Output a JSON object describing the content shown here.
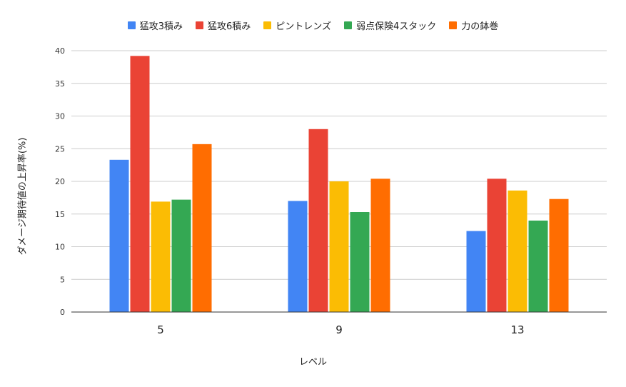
{
  "chart_data": {
    "type": "bar",
    "categories": [
      "5",
      "9",
      "13"
    ],
    "series": [
      {
        "name": "猛攻3積み",
        "color": "#4285F4",
        "values": [
          23.3,
          17.0,
          12.4
        ]
      },
      {
        "name": "猛攻6積み",
        "color": "#EA4335",
        "values": [
          39.2,
          28.0,
          20.4
        ]
      },
      {
        "name": "ピントレンズ",
        "color": "#FBBC04",
        "values": [
          16.9,
          20.0,
          18.6
        ]
      },
      {
        "name": "弱点保険4スタック",
        "color": "#34A853",
        "values": [
          17.2,
          15.3,
          14.0
        ]
      },
      {
        "name": "力の鉢巻",
        "color": "#FF6D01",
        "values": [
          25.7,
          20.4,
          17.3
        ]
      }
    ],
    "ylim": [
      0,
      40
    ],
    "yticks": [
      0,
      5,
      10,
      15,
      20,
      25,
      30,
      35,
      40
    ],
    "xlabel": "レベル",
    "ylabel": "ダメージ期待値の上昇率(%)",
    "grid": true,
    "legend_position": "top"
  }
}
